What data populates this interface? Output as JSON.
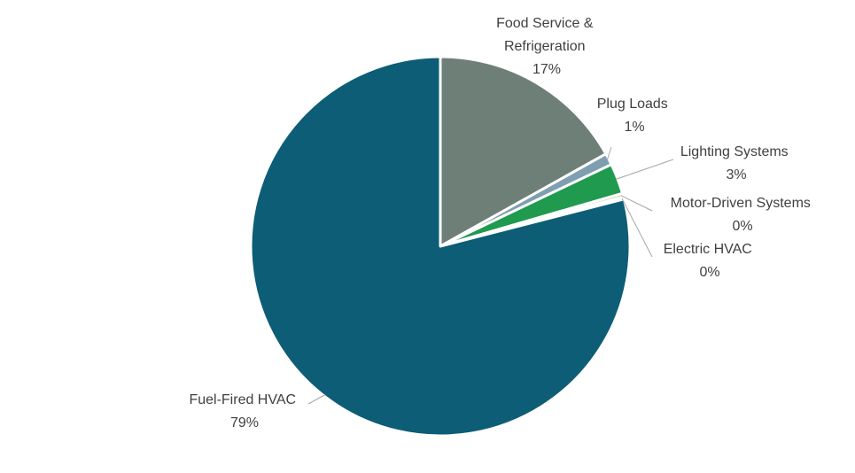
{
  "chart_data": {
    "type": "pie",
    "title": "",
    "slices": [
      {
        "label": "Food Service & Refrigeration",
        "value_label": "17%",
        "value": 16.9,
        "color": "#6e7f77"
      },
      {
        "label": "Plug Loads",
        "value_label": "1%",
        "value": 1.0,
        "color": "#7f9fb0"
      },
      {
        "label": "Lighting Systems",
        "value_label": "3%",
        "value": 2.6,
        "color": "#1f9a4f"
      },
      {
        "label": "Motor-Driven Systems",
        "value_label": "0%",
        "value": 0.3,
        "color": "#c7d1b3"
      },
      {
        "label": "Electric HVAC",
        "value_label": "0%",
        "value": 0.2,
        "color": "#a8c5b8"
      },
      {
        "label": "Fuel-Fired HVAC",
        "value_label": "79%",
        "value": 79.0,
        "color": "#0d5d76"
      }
    ],
    "start_angle_deg": 0,
    "direction": "clockwise",
    "legend": "none",
    "data_labels": "outside with leader lines"
  }
}
